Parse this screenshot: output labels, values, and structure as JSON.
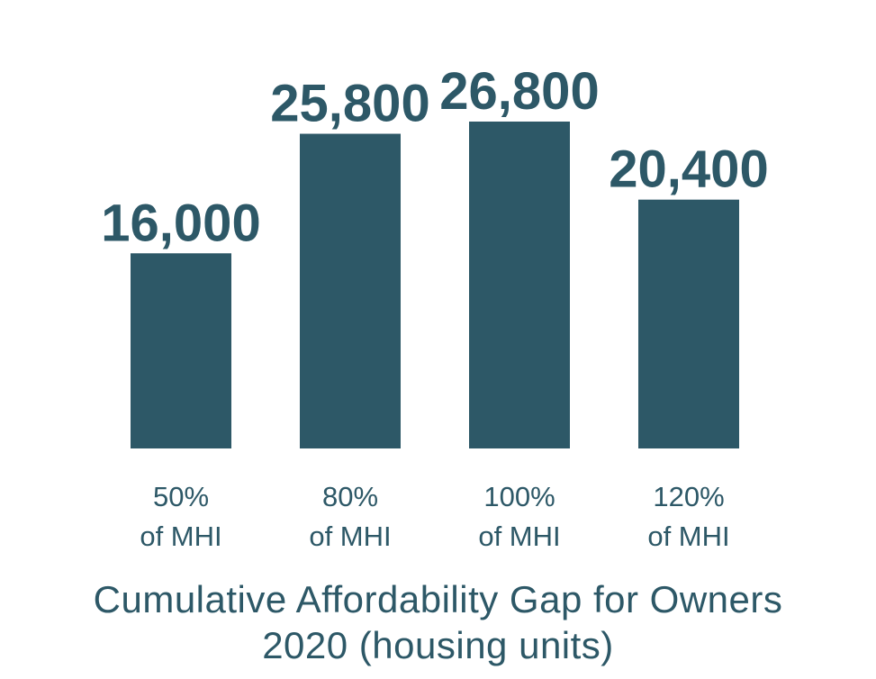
{
  "chart_data": {
    "type": "bar",
    "categories": [
      [
        "50%",
        "of MHI"
      ],
      [
        "80%",
        "of MHI"
      ],
      [
        "100%",
        "of MHI"
      ],
      [
        "120%",
        "of MHI"
      ]
    ],
    "values": [
      16000,
      25800,
      26800,
      20400
    ],
    "data_labels": [
      "16,000",
      "25,800",
      "26,800",
      "20,400"
    ],
    "title": "Cumulative Affordability Gap for Owners",
    "subtitle": "2020 (housing units)",
    "bar_color": "#2d5867",
    "text_color": "#2d5867",
    "grid": false,
    "legend": "none"
  }
}
